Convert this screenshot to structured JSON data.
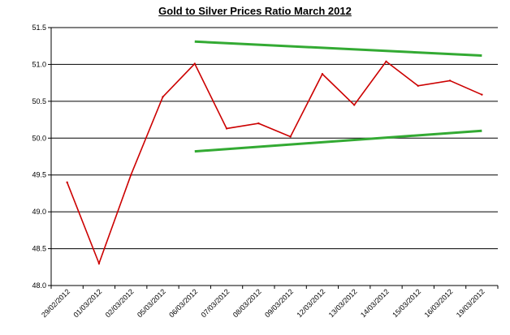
{
  "chart_data": {
    "type": "line",
    "title": "Gold to Silver Prices Ratio  March 2012",
    "categories": [
      "29/02/2012",
      "01/03/2012",
      "02/03/2012",
      "05/03/2012",
      "06/03/2012",
      "07/03/2012",
      "08/03/2012",
      "09/03/2012",
      "12/03/2012",
      "13/03/2012",
      "14/03/2012",
      "15/03/2012",
      "16/03/2012",
      "19/03/2012"
    ],
    "y_ticks": [
      "48.0",
      "48.5",
      "49.0",
      "49.5",
      "50.0",
      "50.5",
      "51.0",
      "51.5"
    ],
    "ylim": [
      48.0,
      51.5
    ],
    "grid": true,
    "series": [
      {
        "color": "#cc0000",
        "values": [
          49.4,
          48.3,
          49.5,
          50.56,
          51.01,
          50.13,
          50.2,
          50.02,
          50.87,
          50.45,
          51.04,
          50.71,
          50.78,
          50.59
        ]
      }
    ],
    "trendlines": [
      {
        "color": "#33aa33",
        "from": [
          4,
          51.31
        ],
        "to": [
          13,
          51.12
        ]
      },
      {
        "color": "#33aa33",
        "from": [
          4,
          49.82
        ],
        "to": [
          13,
          50.1
        ]
      }
    ]
  }
}
